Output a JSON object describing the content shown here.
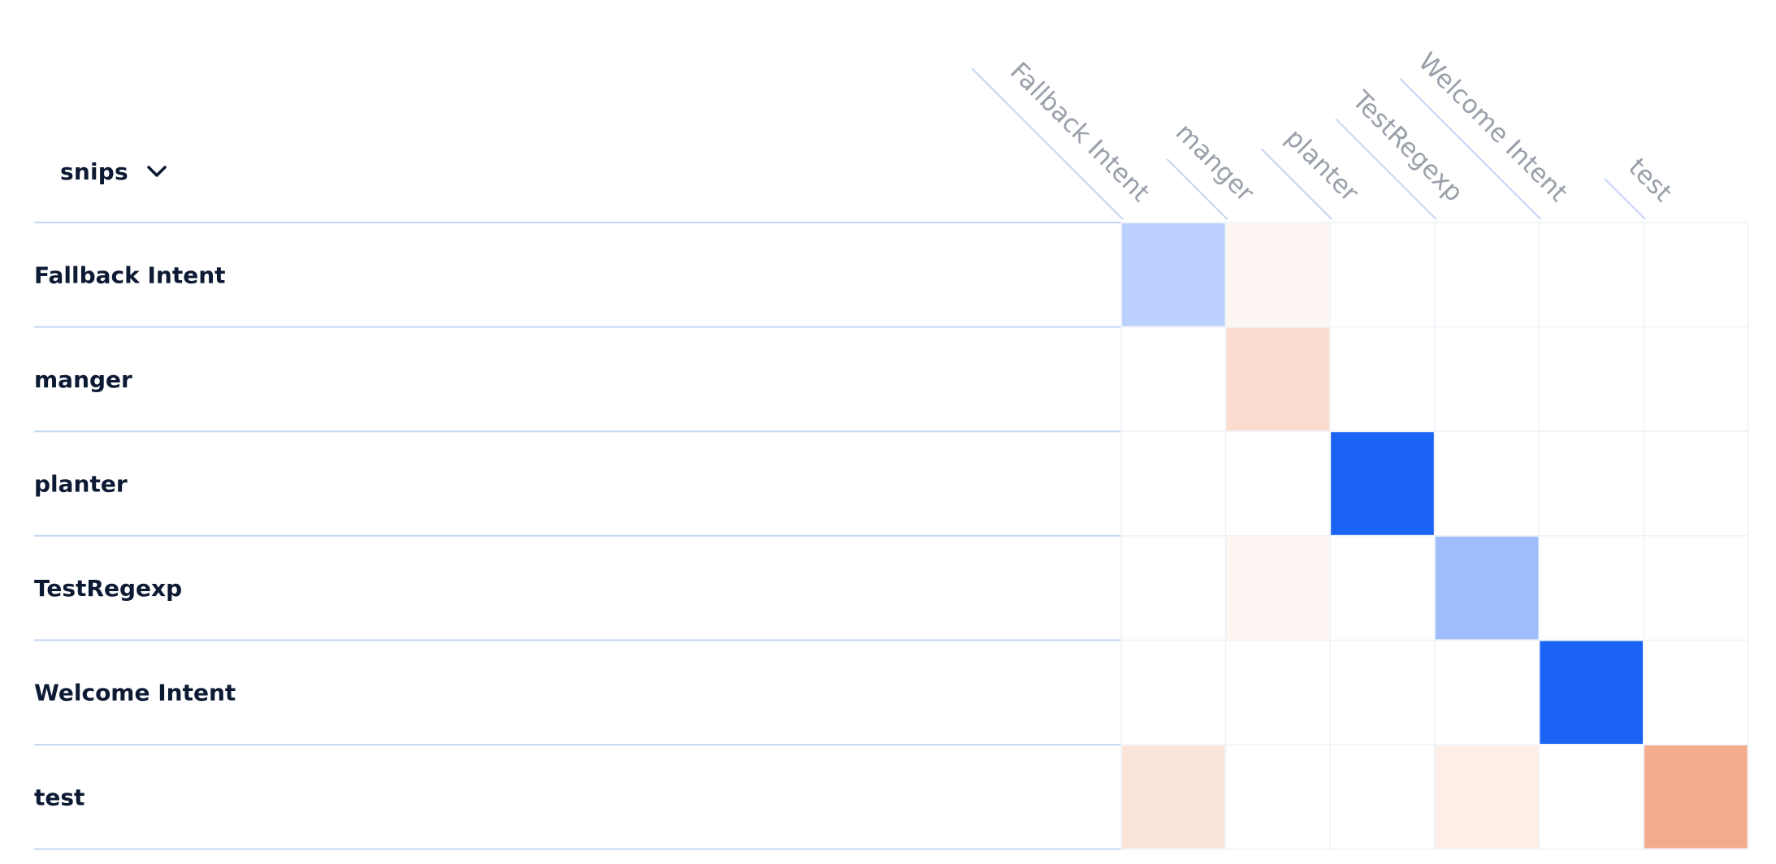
{
  "dropdown": {
    "label": "snips",
    "icon": "chevron-down-icon"
  },
  "chart_data": {
    "type": "heatmap",
    "title": "",
    "xlabel": "",
    "ylabel": "",
    "rows": [
      "Fallback Intent",
      "manger",
      "planter",
      "TestRegexp",
      "Welcome Intent",
      "test"
    ],
    "columns": [
      "Fallback Intent",
      "manger",
      "planter",
      "TestRegexp",
      "Welcome Intent",
      "test"
    ],
    "values": [
      [
        0.3,
        -0.08,
        0,
        0,
        0,
        0
      ],
      [
        0,
        -0.3,
        0,
        0,
        0,
        0
      ],
      [
        0,
        0,
        1.0,
        0,
        0,
        0
      ],
      [
        0,
        -0.08,
        0,
        0.42,
        0,
        0
      ],
      [
        0,
        0,
        0,
        0,
        1.0,
        0
      ],
      [
        -0.22,
        0,
        0,
        -0.14,
        0,
        -0.7
      ]
    ],
    "value_range": [
      -1,
      1
    ],
    "colors": {
      "positive": "#1b63f5",
      "negative": "#ee8a5a",
      "empty": "#ffffff",
      "grid": "#eef2f8",
      "row_divider": "#c4d6f3",
      "label_text": "#0d1a33",
      "column_text": "#9aa0aa"
    }
  }
}
